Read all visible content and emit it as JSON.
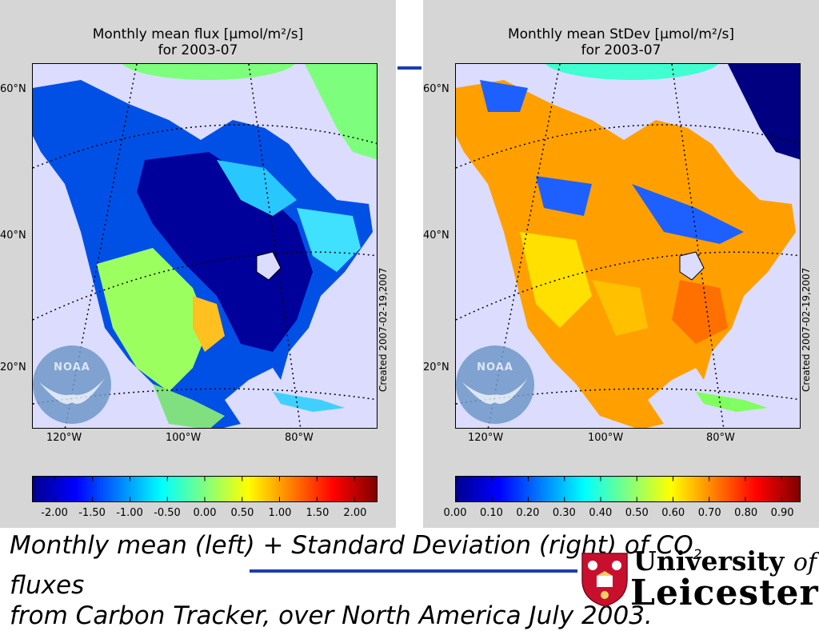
{
  "left_panel": {
    "title_line1": "Monthly mean flux [μmol/m²/s]",
    "title_line2": "for 2003-07",
    "created": "Created 2007-02-19,2007",
    "lat_labels": [
      "60°N",
      "40°N",
      "20°N"
    ],
    "lon_labels": [
      "120°W",
      "100°W",
      "80°W"
    ],
    "colorbar_labels": [
      "-2.00",
      "-1.50",
      "-1.00",
      "-0.50",
      "0.00",
      "0.50",
      "1.00",
      "1.50",
      "2.00"
    ],
    "colorbar_stops": [
      "#00008f",
      "#0000ff",
      "#0080ff",
      "#00ffff",
      "#80ff80",
      "#ffff00",
      "#ff8000",
      "#ff0000",
      "#800000"
    ],
    "noaa": "NOAA"
  },
  "right_panel": {
    "title_line1": "Monthly mean StDev [μmol/m²/s]",
    "title_line2": "for 2003-07",
    "created": "Created 2007-02-19,2007",
    "lat_labels": [
      "60°N",
      "40°N",
      "20°N"
    ],
    "lon_labels": [
      "120°W",
      "100°W",
      "80°W"
    ],
    "colorbar_labels": [
      "0.00",
      "0.10",
      "0.20",
      "0.30",
      "0.40",
      "0.50",
      "0.60",
      "0.70",
      "0.80",
      "0.90"
    ],
    "colorbar_stops": [
      "#00008f",
      "#0000ff",
      "#0080ff",
      "#00ffff",
      "#80ff80",
      "#ffff00",
      "#ff8000",
      "#ff0000",
      "#800000"
    ],
    "noaa": "NOAA"
  },
  "caption": {
    "line1_pre": "Monthly mean (left) + Standard Deviation (right) of CO",
    "line1_sub": "2",
    "line1_post": " fluxes",
    "line2": "from Carbon Tracker, over North America July 2003."
  },
  "logo": {
    "university": "University",
    "of": "of",
    "leicester": "Leicester"
  },
  "colors": {
    "panel_bg": "#d6d6d6",
    "map_bg": "#dcdcff",
    "accent_line": "#1a3db0",
    "crest_red": "#c8102e"
  }
}
